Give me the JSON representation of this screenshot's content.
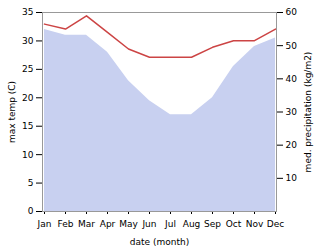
{
  "chart_data": {
    "type": "area",
    "categories": [
      "Jan",
      "Feb",
      "Mar",
      "Apr",
      "May",
      "Jun",
      "Jul",
      "Aug",
      "Sep",
      "Oct",
      "Nov",
      "Dec"
    ],
    "series": [
      {
        "type": "area",
        "color": "#c8d0f0",
        "values": [
          32,
          31,
          31,
          28,
          23,
          19.5,
          17,
          17,
          20,
          25.5,
          29,
          30.5
        ]
      },
      {
        "type": "line",
        "color": "#cc4444",
        "axis": "y2",
        "values": [
          56.5,
          55,
          59,
          54,
          49,
          46.5,
          46.5,
          46.5,
          49.5,
          51.5,
          51.5,
          55
        ]
      }
    ],
    "xlabel": "date (month)",
    "ylabel": "max temp (C)",
    "y2label": "med. precipitation (kg/m2)",
    "ylim": [
      0,
      35
    ],
    "yticks": [
      0,
      5,
      10,
      15,
      20,
      25,
      30,
      35
    ],
    "y2lim": [
      0,
      60
    ],
    "y2ticks": [
      10,
      20,
      30,
      40,
      50,
      60
    ]
  }
}
